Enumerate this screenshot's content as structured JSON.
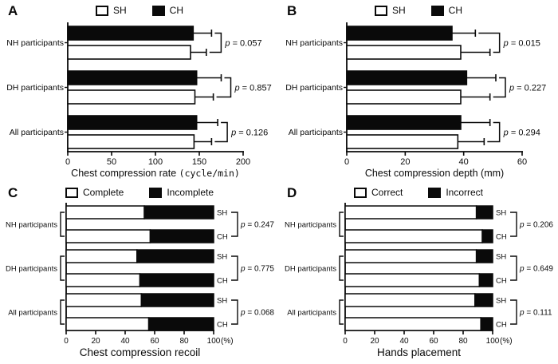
{
  "figure": {
    "background": "#ffffff",
    "ink": "#0a0a0a"
  },
  "chart_data": [
    {
      "panel_label": "A",
      "type": "bar",
      "layout": "grouped-horizontal",
      "legend": [
        {
          "label": "SH",
          "fill": "#ffffff"
        },
        {
          "label": "CH",
          "fill": "#0a0a0a"
        }
      ],
      "xlabel": "Chest compression rate",
      "xlabel_unit": "(cycle/min)",
      "unit_mono": true,
      "xlim": [
        0,
        200
      ],
      "xticks": [
        0,
        50,
        100,
        150,
        200
      ],
      "categories": [
        "NH participants",
        "DH participants",
        "All participants"
      ],
      "series": [
        {
          "name": "CH",
          "fill": "#0a0a0a",
          "values": [
            143,
            147,
            147
          ],
          "error_to": [
            164,
            175,
            171
          ]
        },
        {
          "name": "SH",
          "fill": "#ffffff",
          "values": [
            140,
            145,
            144
          ],
          "error_to": [
            158,
            166,
            164
          ]
        }
      ],
      "p_label": "p",
      "p_separator": " = ",
      "p_values": [
        "0.057",
        "0.857",
        "0.126"
      ]
    },
    {
      "panel_label": "B",
      "type": "bar",
      "layout": "grouped-horizontal",
      "legend": [
        {
          "label": "SH",
          "fill": "#ffffff"
        },
        {
          "label": "CH",
          "fill": "#0a0a0a"
        }
      ],
      "xlabel": "Chest compression depth",
      "xlabel_unit": "(mm)",
      "unit_mono": false,
      "xlim": [
        0,
        60
      ],
      "xticks": [
        0,
        20,
        40,
        60
      ],
      "categories": [
        "NH participants",
        "DH participants",
        "All participants"
      ],
      "series": [
        {
          "name": "CH",
          "fill": "#0a0a0a",
          "values": [
            36,
            41,
            39
          ],
          "error_to": [
            44,
            51,
            49
          ]
        },
        {
          "name": "SH",
          "fill": "#ffffff",
          "values": [
            39,
            39,
            38
          ],
          "error_to": [
            49,
            49,
            47
          ]
        }
      ],
      "p_label": "p",
      "p_separator": " = ",
      "p_values": [
        "0.015",
        "0.227",
        "0.294"
      ]
    },
    {
      "panel_label": "C",
      "type": "bar",
      "layout": "stacked-horizontal",
      "legend": [
        {
          "label": "Complete",
          "fill": "#ffffff"
        },
        {
          "label": "Incomplete",
          "fill": "#0a0a0a"
        }
      ],
      "xlabel": "Chest compression recoil",
      "tick_suffix": "(%)",
      "xlim": [
        0,
        100
      ],
      "xticks": [
        0,
        20,
        40,
        60,
        80,
        100
      ],
      "categories": [
        "NH participants",
        "DH participants",
        "All participants"
      ],
      "bar_tags": [
        "SH",
        "CH"
      ],
      "series": [
        {
          "name": "Complete",
          "fill": "#ffffff",
          "values": {
            "SH": [
              53,
              48,
              51
            ],
            "CH": [
              57,
              50,
              56
            ]
          }
        },
        {
          "name": "Incomplete",
          "fill": "#0a0a0a",
          "values": {
            "SH": [
              47,
              52,
              49
            ],
            "CH": [
              43,
              50,
              44
            ]
          }
        }
      ],
      "p_label": "p",
      "p_separator": " = ",
      "p_values": [
        "0.247",
        "0.775",
        "0.068"
      ]
    },
    {
      "panel_label": "D",
      "type": "bar",
      "layout": "stacked-horizontal",
      "legend": [
        {
          "label": "Correct",
          "fill": "#ffffff"
        },
        {
          "label": "Incorrect",
          "fill": "#0a0a0a"
        }
      ],
      "xlabel": "Hands placement",
      "tick_suffix": "(%)",
      "xlim": [
        0,
        100
      ],
      "xticks": [
        0,
        20,
        40,
        60,
        80,
        100
      ],
      "categories": [
        "NH participants",
        "DH participants",
        "All participants"
      ],
      "bar_tags": [
        "SH",
        "CH"
      ],
      "series": [
        {
          "name": "Correct",
          "fill": "#ffffff",
          "values": {
            "SH": [
              89,
              89,
              88
            ],
            "CH": [
              93,
              91,
              92
            ]
          }
        },
        {
          "name": "Incorrect",
          "fill": "#0a0a0a",
          "values": {
            "SH": [
              11,
              11,
              12
            ],
            "CH": [
              7,
              9,
              8
            ]
          }
        }
      ],
      "p_label": "p",
      "p_separator": " = ",
      "p_values": [
        "0.206",
        "0.649",
        "0.111"
      ]
    }
  ]
}
